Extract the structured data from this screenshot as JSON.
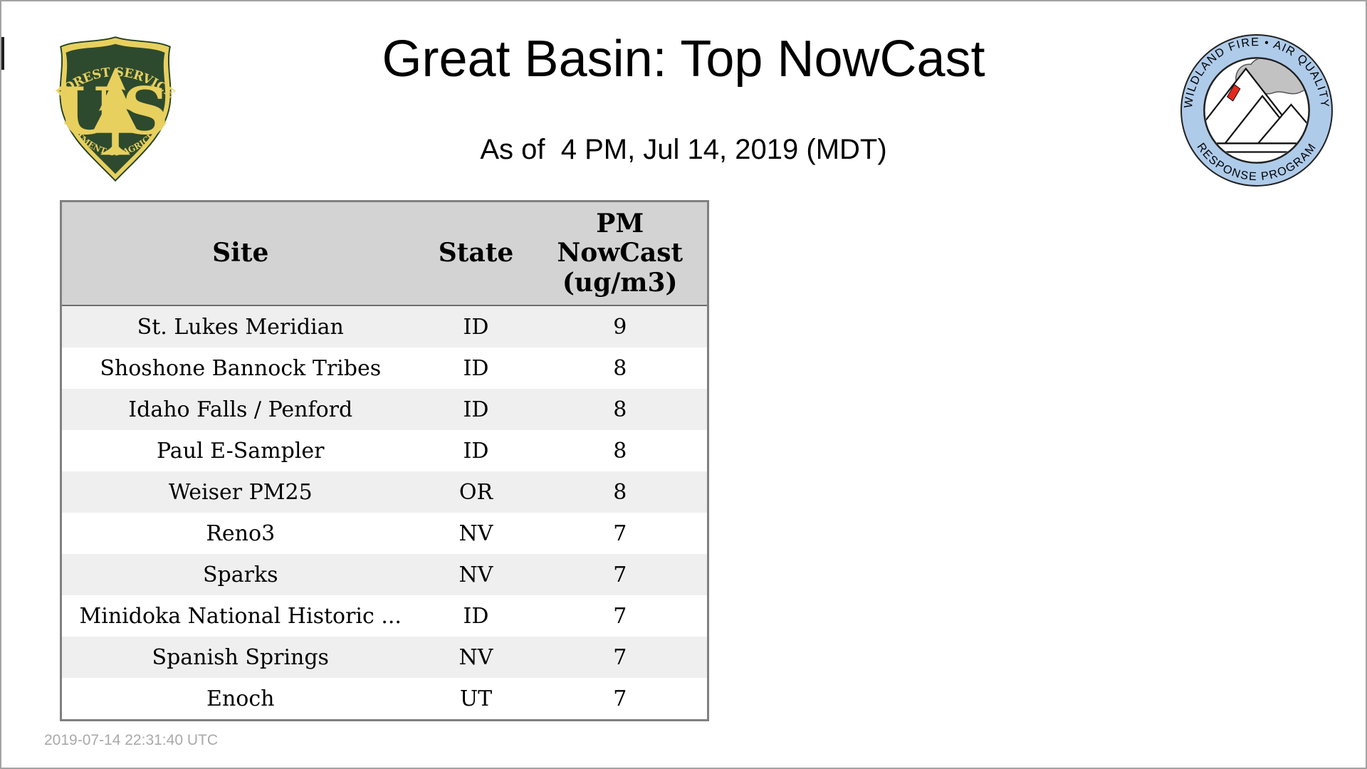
{
  "page": {
    "title": "Great Basin: Top NowCast",
    "subtitle": "As of  4 PM, Jul 14, 2019 (MDT)",
    "footer_timestamp": "2019-07-14 22:31:40 UTC"
  },
  "logos": {
    "forest_service": {
      "arc_top": "FOREST SERVICE",
      "letter_left": "U",
      "letter_right": "S",
      "arc_bottom": "DEPARTMENT OF AGRICULTURE",
      "colors": {
        "green": "#2d4a2e",
        "gold": "#e8d05e"
      }
    },
    "air_quality_program": {
      "arc_top": "WILDLAND FIRE • AIR QUALITY",
      "arc_bottom": "RESPONSE PROGRAM",
      "colors": {
        "ring": "#aecbea",
        "smoke": "#c2c2c2",
        "fire": "#e42a1d"
      }
    }
  },
  "table": {
    "columns": [
      "Site",
      "State",
      "PM\nNowCast\n(ug/m3)"
    ],
    "rows": [
      {
        "site": "St. Lukes Meridian",
        "state": "ID",
        "value": "9"
      },
      {
        "site": "Shoshone Bannock Tribes",
        "state": "ID",
        "value": "8"
      },
      {
        "site": "Idaho Falls / Penford",
        "state": "ID",
        "value": "8"
      },
      {
        "site": "Paul E-Sampler",
        "state": "ID",
        "value": "8"
      },
      {
        "site": "Weiser PM25",
        "state": "OR",
        "value": "8"
      },
      {
        "site": "Reno3",
        "state": "NV",
        "value": "7"
      },
      {
        "site": "Sparks",
        "state": "NV",
        "value": "7"
      },
      {
        "site": "Minidoka National Historic ...",
        "state": "ID",
        "value": "7"
      },
      {
        "site": "Spanish Springs",
        "state": "NV",
        "value": "7"
      },
      {
        "site": "Enoch",
        "state": "UT",
        "value": "7"
      }
    ],
    "style": {
      "header_bg": "#d3d3d3",
      "stripe_bg": "#efefef",
      "border": "#808080"
    }
  }
}
